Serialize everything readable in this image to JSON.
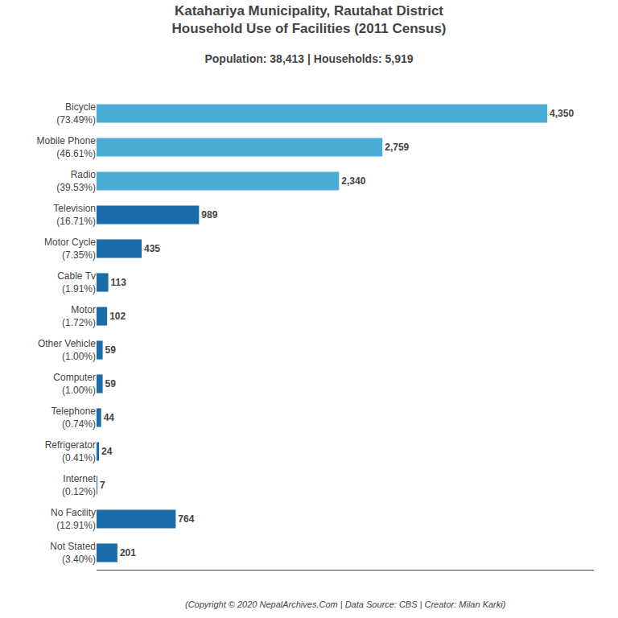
{
  "chart_data": {
    "type": "bar",
    "orientation": "horizontal",
    "title": "Katahariya Municipality, Rautahat District\nHousehold Use of Facilities (2011 Census)",
    "subtitle": "Population: 38,413 | Households: 5,919",
    "annotations": [
      "(Copyright © 2020 NepalArchives.Com | Data Source: CBS | Creator: Milan Karki)"
    ],
    "categories": [
      "Not Stated\n(3.40%)",
      "No Facility\n(12.91%)",
      "Internet\n(0.12%)",
      "Refrigerator\n(0.41%)",
      "Telephone\n(0.74%)",
      "Computer\n(1.00%)",
      "Other Vehicle\n(1.00%)",
      "Motor\n(1.72%)",
      "Cable Tv\n(1.91%)",
      "Motor Cycle\n(7.35%)",
      "Television\n(16.71%)",
      "Radio\n(39.53%)",
      "Mobile Phone\n(46.61%)",
      "Bicycle\n(73.49%)"
    ],
    "values": [
      201,
      764,
      7,
      24,
      44,
      59,
      59,
      102,
      113,
      435,
      989,
      2340,
      2759,
      4350
    ],
    "value_labels": [
      "201",
      "764",
      "7",
      "24",
      "44",
      "59",
      "59",
      "102",
      "113",
      "435",
      "989",
      "2,340",
      "2,759",
      "4,350"
    ],
    "colors": [
      "#1b6ca8",
      "#1b6ca8",
      "#1b6ca8",
      "#1b6ca8",
      "#1b6ca8",
      "#1b6ca8",
      "#1b6ca8",
      "#1b6ca8",
      "#1b6ca8",
      "#1b6ca8",
      "#1b6ca8",
      "#4aadd6",
      "#4aadd6",
      "#4aadd6"
    ],
    "xlim": [
      0,
      4800
    ],
    "grid": false,
    "data_labels": true,
    "tick_labels": "y"
  }
}
